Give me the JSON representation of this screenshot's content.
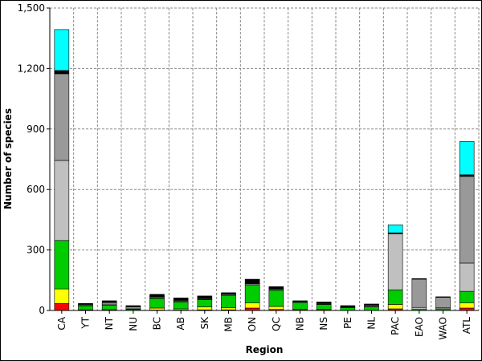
{
  "chart_data": {
    "type": "stacked_bar",
    "x_label": "Region",
    "y_label": "Number of species",
    "categories": [
      "CA",
      "YT",
      "NT",
      "NU",
      "BC",
      "AB",
      "SK",
      "MB",
      "ON",
      "QC",
      "NB",
      "NS",
      "PE",
      "NL",
      "PAC",
      "EAO",
      "WAO",
      "ATL"
    ],
    "series": [
      {
        "color": "#ff0000",
        "values": [
          35,
          0,
          0,
          0,
          2,
          2,
          3,
          3,
          12,
          5,
          2,
          2,
          0,
          0,
          8,
          0,
          0,
          12
        ]
      },
      {
        "color": "#ffff00",
        "values": [
          72,
          3,
          4,
          0,
          10,
          6,
          15,
          10,
          25,
          15,
          3,
          3,
          0,
          0,
          22,
          0,
          0,
          25
        ]
      },
      {
        "color": "#00cc00",
        "values": [
          240,
          20,
          22,
          5,
          48,
          34,
          35,
          62,
          90,
          80,
          35,
          25,
          14,
          18,
          72,
          5,
          8,
          58
        ]
      },
      {
        "color": "#c0c0c0",
        "values": [
          397,
          2,
          5,
          3,
          3,
          3,
          3,
          4,
          5,
          4,
          0,
          2,
          0,
          2,
          278,
          10,
          5,
          140
        ]
      },
      {
        "color": "#999999",
        "values": [
          430,
          5,
          8,
          10,
          5,
          5,
          4,
          3,
          3,
          4,
          3,
          3,
          3,
          6,
          0,
          140,
          52,
          430
        ]
      },
      {
        "color": "#000000",
        "values": [
          16,
          5,
          9,
          6,
          12,
          12,
          12,
          6,
          20,
          10,
          5,
          7,
          7,
          6,
          5,
          3,
          3,
          8
        ]
      },
      {
        "color": "#00ffff",
        "values": [
          203,
          0,
          0,
          0,
          0,
          0,
          0,
          0,
          0,
          0,
          0,
          0,
          0,
          0,
          40,
          0,
          0,
          165
        ]
      }
    ],
    "ylim": [
      0,
      1500
    ],
    "yticks": [
      0,
      300,
      600,
      900,
      {
        "value": 1200,
        "label": "1,200"
      },
      {
        "value": 1500,
        "label": "1,500"
      }
    ],
    "grid": true
  }
}
